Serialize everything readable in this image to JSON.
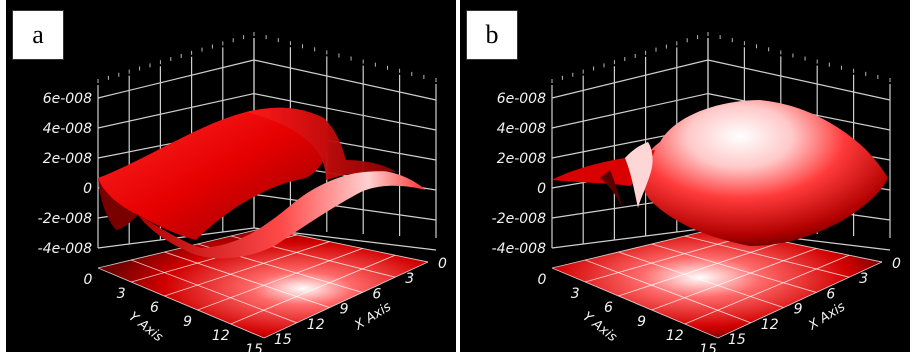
{
  "chart_data": [
    {
      "type": "surface3d",
      "panel_label": "a",
      "z_ticks": [
        "6e-008",
        "4e-008",
        "2e-008",
        "0",
        "-2e-008",
        "-4e-008"
      ],
      "z_tick_values": [
        6e-08,
        4e-08,
        2e-08,
        0,
        -2e-08,
        -4e-08
      ],
      "y_ticks": [
        "0",
        "3",
        "6",
        "9",
        "12",
        "15"
      ],
      "x_ticks": [
        "15",
        "12",
        "9",
        "6",
        "3",
        "0"
      ],
      "ylabel": "Y Axis",
      "xlabel": "X Axis",
      "zlim": [
        -4e-08,
        6e-08
      ],
      "colormap": "red",
      "projection_floor": true
    },
    {
      "type": "surface3d",
      "panel_label": "b",
      "z_ticks": [
        "6e-008",
        "4e-008",
        "2e-008",
        "0",
        "-2e-008",
        "-4e-008"
      ],
      "z_tick_values": [
        6e-08,
        4e-08,
        2e-08,
        0,
        -2e-08,
        -4e-08
      ],
      "y_ticks": [
        "0",
        "3",
        "6",
        "9",
        "12",
        "15"
      ],
      "x_ticks": [
        "15",
        "12",
        "9",
        "6",
        "3",
        "0"
      ],
      "ylabel": "Y Axis",
      "xlabel": "X Axis",
      "zlim": [
        -4e-08,
        6e-08
      ],
      "colormap": "red",
      "projection_floor": true
    }
  ]
}
